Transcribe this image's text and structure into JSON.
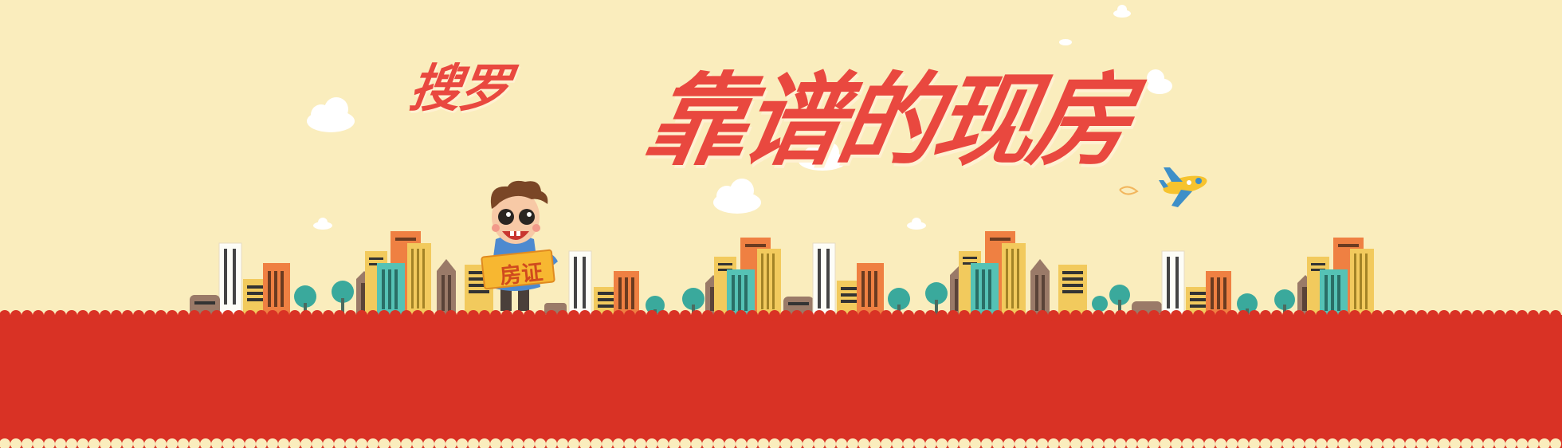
{
  "headline": {
    "prefix": "搜罗",
    "main": "靠谱的现房"
  },
  "mascot": {
    "sign_text": "房证"
  },
  "colors": {
    "background": "#faedbd",
    "headline": "#e9483f",
    "ground": "#d93225",
    "building_orange": "#ef8042",
    "building_yellow": "#f2ca5d",
    "building_teal": "#55c2b5",
    "building_brown": "#9a7a68",
    "tree": "#3aa99c"
  },
  "icons": [
    "cloud-icon",
    "airplane-icon",
    "building-icon",
    "tree-icon",
    "mascot-character"
  ]
}
